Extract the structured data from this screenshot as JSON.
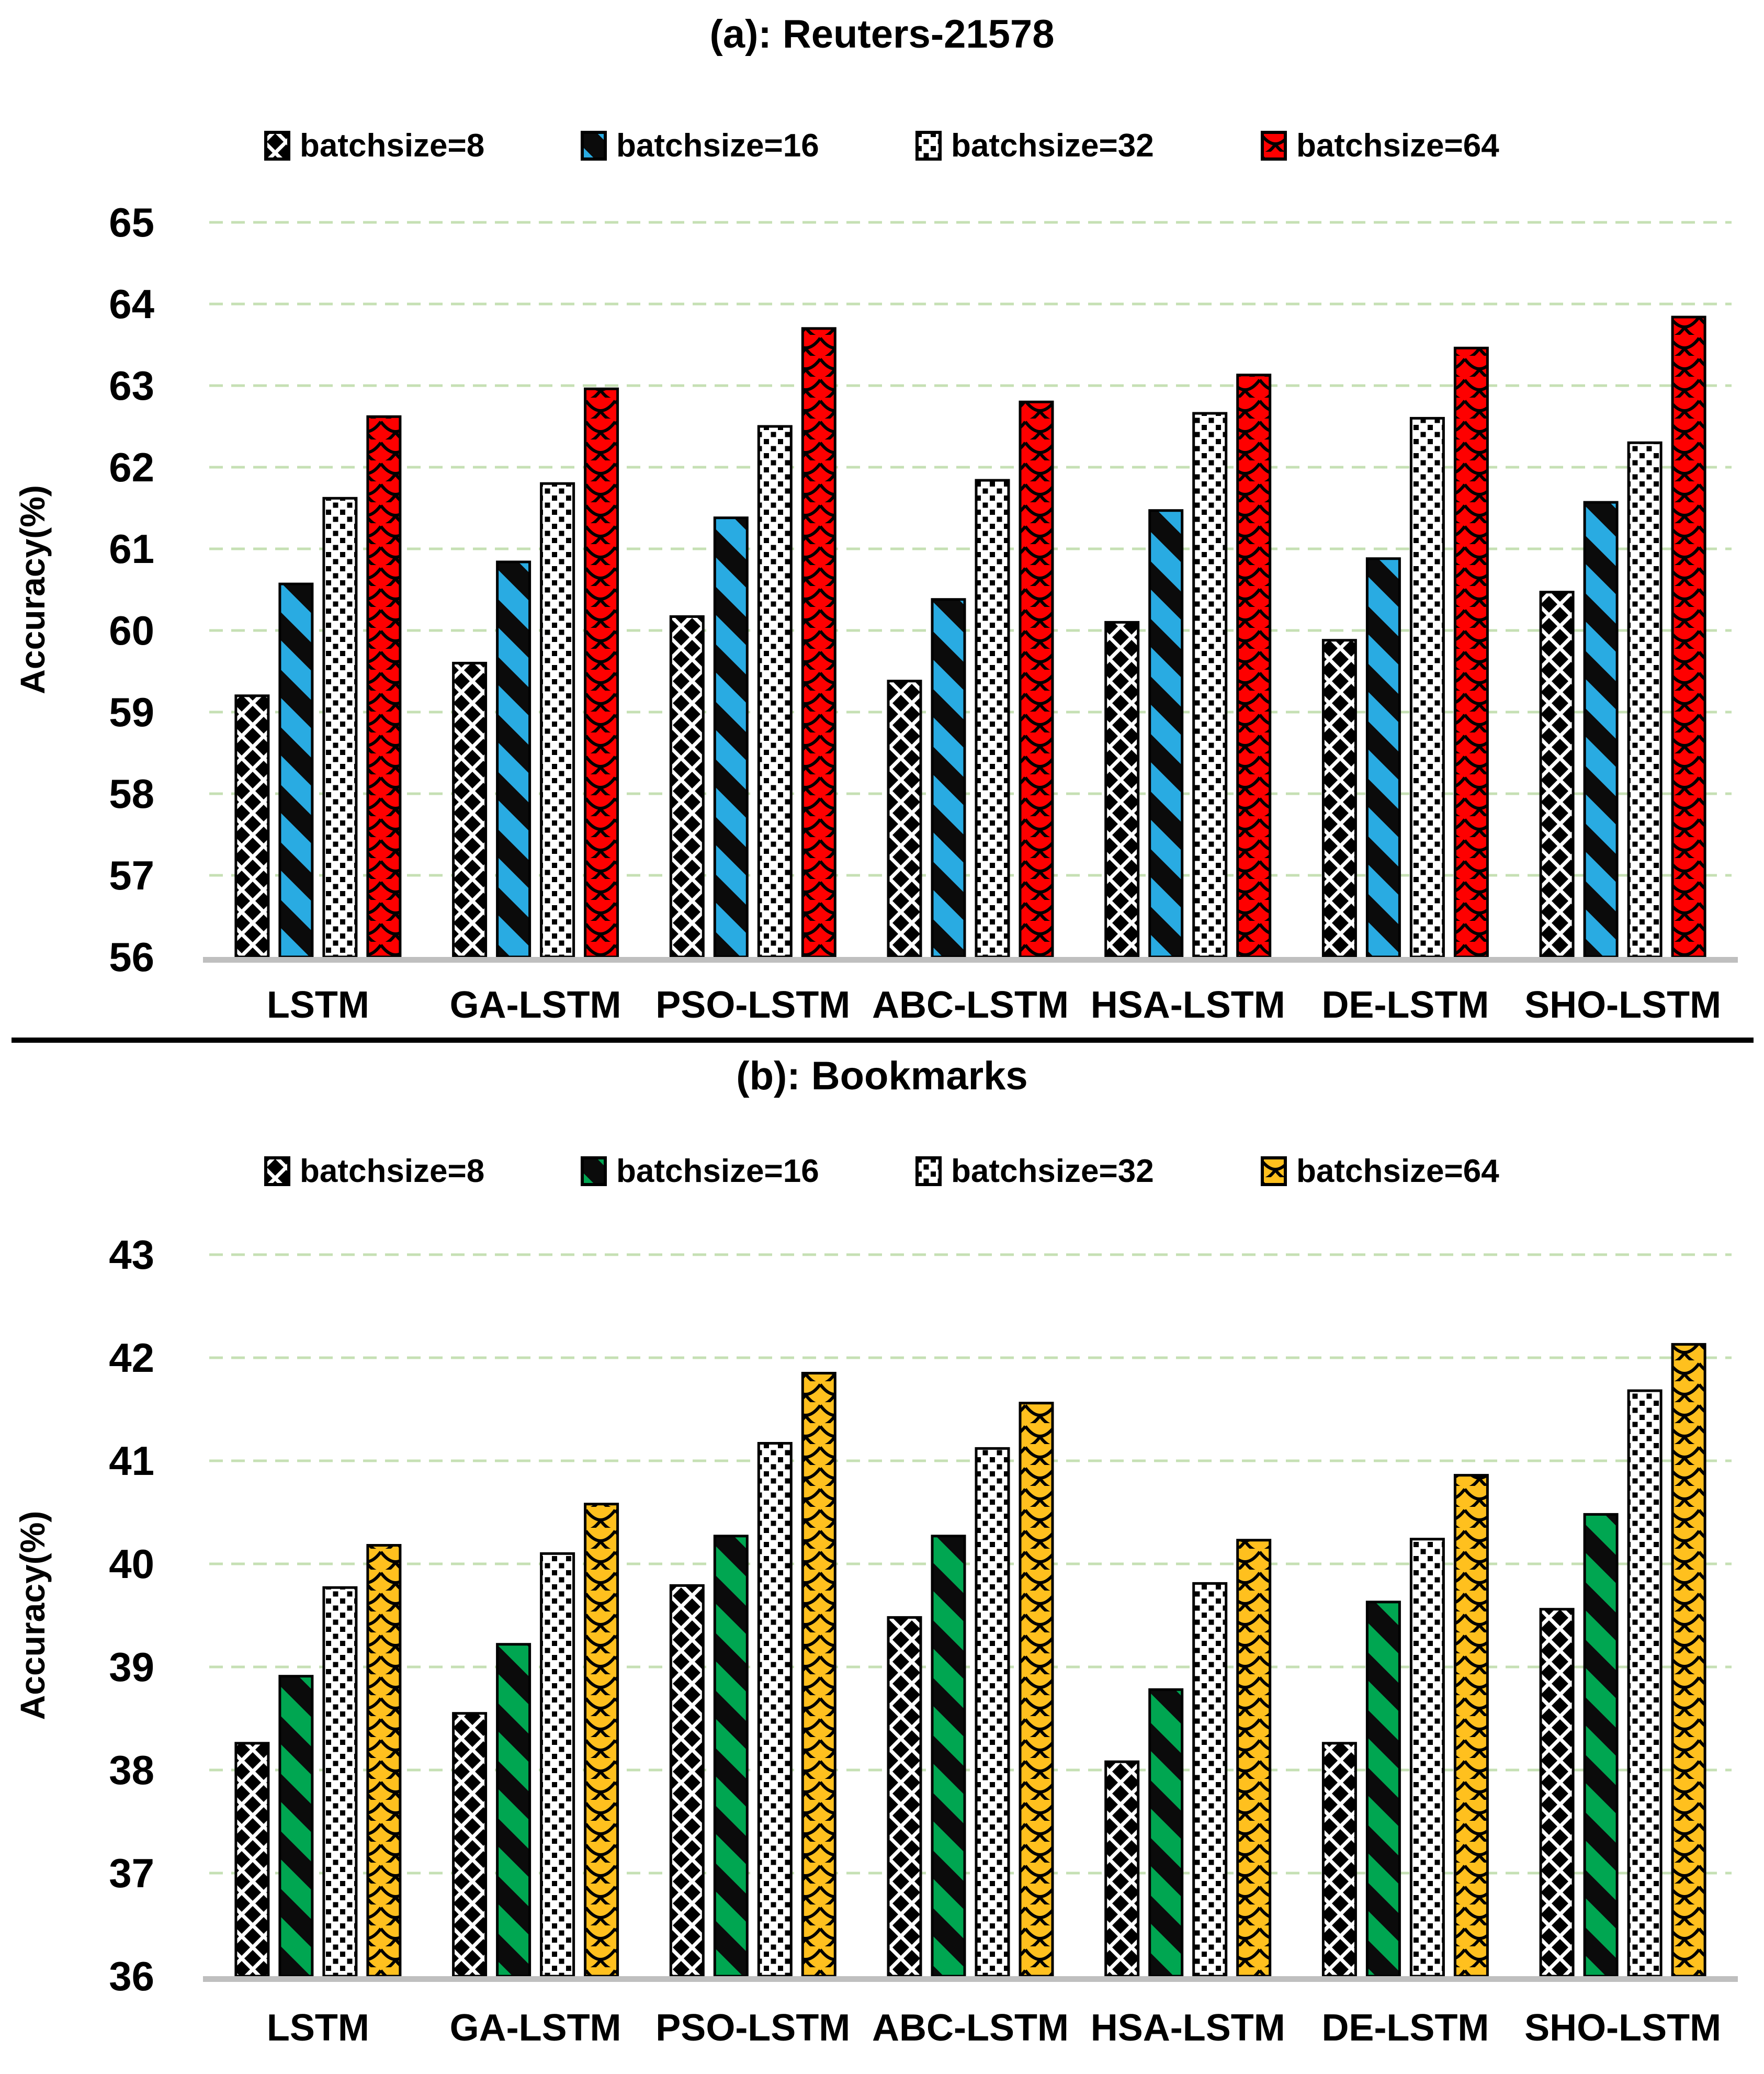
{
  "page": {
    "background": "#FFFFFF",
    "divider_color": "#000000",
    "gridline_color": "#C6E0B4",
    "baseline_color": "#BFBFBF"
  },
  "chart_data": [
    {
      "id": "a",
      "type": "bar",
      "title": "(a): Reuters-21578",
      "ylabel": "Accuracy(%)",
      "xlabel": "",
      "ylim": [
        56,
        65
      ],
      "yticks": [
        56,
        57,
        58,
        59,
        60,
        61,
        62,
        63,
        64,
        65
      ],
      "grid": "horizontal-dashed",
      "legend_position": "top",
      "categories": [
        "LSTM",
        "GA-LSTM",
        "PSO-LSTM",
        "ABC-LSTM",
        "HSA-LSTM",
        "DE-LSTM",
        "SHO-LSTM"
      ],
      "series": [
        {
          "name": "batchsize=8",
          "pattern": "diamond",
          "color": "#FFFFFF",
          "values": [
            59.2,
            59.6,
            60.17,
            59.38,
            60.1,
            59.88,
            60.47
          ]
        },
        {
          "name": "batchsize=16",
          "pattern": "stripe",
          "color": "#29ABE2",
          "values": [
            60.57,
            60.84,
            61.38,
            60.38,
            61.47,
            60.88,
            61.57
          ]
        },
        {
          "name": "batchsize=32",
          "pattern": "dots",
          "color": "#FFFFFF",
          "values": [
            61.62,
            61.8,
            62.5,
            61.84,
            62.66,
            62.6,
            62.3
          ]
        },
        {
          "name": "batchsize=64",
          "pattern": "scales",
          "color": "#FE0000",
          "values": [
            62.62,
            62.96,
            63.7,
            62.8,
            63.13,
            63.46,
            63.84
          ]
        }
      ]
    },
    {
      "id": "b",
      "type": "bar",
      "title": "(b): Bookmarks",
      "ylabel": "Accuracy(%)",
      "xlabel": "",
      "ylim": [
        36,
        43
      ],
      "yticks": [
        36,
        37,
        38,
        39,
        40,
        41,
        42,
        43
      ],
      "grid": "horizontal-dashed",
      "legend_position": "top",
      "categories": [
        "LSTM",
        "GA-LSTM",
        "PSO-LSTM",
        "ABC-LSTM",
        "HSA-LSTM",
        "DE-LSTM",
        "SHO-LSTM"
      ],
      "series": [
        {
          "name": "batchsize=8",
          "pattern": "diamond",
          "color": "#FFFFFF",
          "values": [
            38.26,
            38.55,
            39.79,
            39.48,
            38.08,
            38.26,
            39.56
          ]
        },
        {
          "name": "batchsize=16",
          "pattern": "stripe",
          "color": "#00A651",
          "values": [
            38.91,
            39.22,
            40.27,
            40.27,
            38.78,
            39.63,
            40.48
          ]
        },
        {
          "name": "batchsize=32",
          "pattern": "dots",
          "color": "#FFFFFF",
          "values": [
            39.77,
            40.1,
            41.17,
            41.12,
            39.81,
            40.24,
            41.68
          ]
        },
        {
          "name": "batchsize=64",
          "pattern": "scales",
          "color": "#FFC01E",
          "values": [
            40.18,
            40.58,
            41.85,
            41.56,
            40.23,
            40.86,
            42.13
          ]
        }
      ]
    }
  ]
}
